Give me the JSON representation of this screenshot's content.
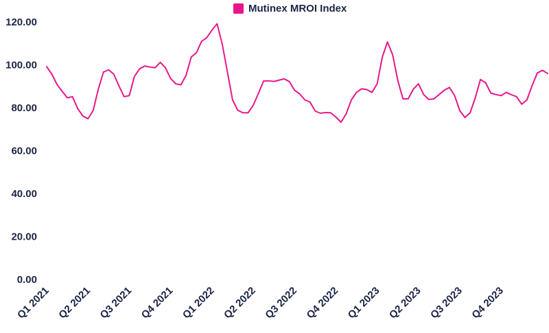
{
  "chart_data": {
    "type": "line",
    "categories": [
      "Q1 2021",
      null,
      null,
      null,
      null,
      null,
      null,
      null,
      "Q2 2021",
      null,
      null,
      null,
      null,
      null,
      null,
      null,
      "Q3 2021",
      null,
      null,
      null,
      null,
      null,
      null,
      null,
      "Q4 2021",
      null,
      null,
      null,
      null,
      null,
      null,
      null,
      "Q1 2022",
      null,
      null,
      null,
      null,
      null,
      null,
      null,
      "Q2 2022",
      null,
      null,
      null,
      null,
      null,
      null,
      null,
      "Q3 2022",
      null,
      null,
      null,
      null,
      null,
      null,
      null,
      "Q4 2022",
      null,
      null,
      null,
      null,
      null,
      null,
      null,
      "Q1 2023",
      null,
      null,
      null,
      null,
      null,
      null,
      null,
      "Q2 2023",
      null,
      null,
      null,
      null,
      null,
      null,
      null,
      "Q3 2023",
      null,
      null,
      null,
      null,
      null,
      null,
      null,
      "Q4 2023",
      null,
      null,
      null,
      null,
      null,
      null,
      null,
      null,
      null
    ],
    "series": [
      {
        "name": "Mutinex MROI Index",
        "color": "#e8168b",
        "values": [
          99.5,
          96,
          91.2,
          88,
          85,
          85.5,
          80,
          76.5,
          75.2,
          79,
          89,
          97,
          98,
          96,
          90.5,
          85.5,
          86,
          95,
          98.5,
          99.8,
          99.3,
          99,
          101.5,
          99,
          94,
          91.5,
          91,
          95.5,
          104,
          106,
          111.3,
          113,
          116.5,
          119.5,
          110,
          97,
          84,
          79.2,
          78,
          78,
          81.5,
          87,
          92.8,
          92.9,
          92.6,
          93.2,
          93.8,
          92.5,
          88.5,
          86.8,
          84,
          83,
          78.8,
          77.8,
          78.1,
          78,
          76,
          73.6,
          77.5,
          84,
          87.5,
          89.2,
          88.8,
          87.5,
          91.5,
          104,
          111,
          105,
          93,
          84.5,
          84.5,
          89,
          91.5,
          86.5,
          84.2,
          84.5,
          86.5,
          88.5,
          89.8,
          86,
          79,
          75.8,
          78,
          85,
          93.5,
          92,
          87.2,
          86.5,
          86,
          87.5,
          86.4,
          85.5,
          82,
          84,
          90.6,
          96.5,
          97.8,
          96.3
        ]
      }
    ],
    "ylim": [
      0,
      120
    ],
    "yticks": [
      {
        "value": 0,
        "label": "0.00"
      },
      {
        "value": 20,
        "label": "20.00"
      },
      {
        "value": 40,
        "label": "40.00"
      },
      {
        "value": 60,
        "label": "60.00"
      },
      {
        "value": 80,
        "label": "80.00"
      },
      {
        "value": 100,
        "label": "100.00"
      },
      {
        "value": 120,
        "label": "120.00"
      }
    ],
    "grid": false,
    "legend": "top"
  }
}
